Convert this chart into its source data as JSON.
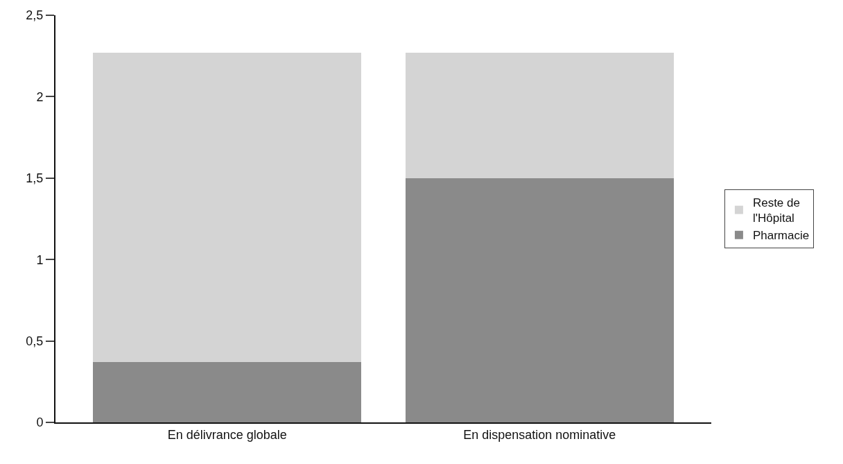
{
  "chart_data": {
    "type": "bar",
    "stacked": true,
    "categories": [
      "En délivrance globale",
      "En dispensation nominative"
    ],
    "series": [
      {
        "name": "Pharmacie",
        "color": "#8a8a8a",
        "values": [
          0.37,
          1.5
        ]
      },
      {
        "name": "Reste de l'Hôpital",
        "color": "#d4d4d4",
        "values": [
          1.9,
          0.77
        ]
      }
    ],
    "ylim": [
      0,
      2.5
    ],
    "yticks": [
      0,
      {
        "value": 0.5,
        "label": "0,5"
      },
      1,
      {
        "value": 1.5,
        "label": "1,5"
      },
      2,
      {
        "value": 2.5,
        "label": "2,5"
      }
    ],
    "legend": "right"
  }
}
